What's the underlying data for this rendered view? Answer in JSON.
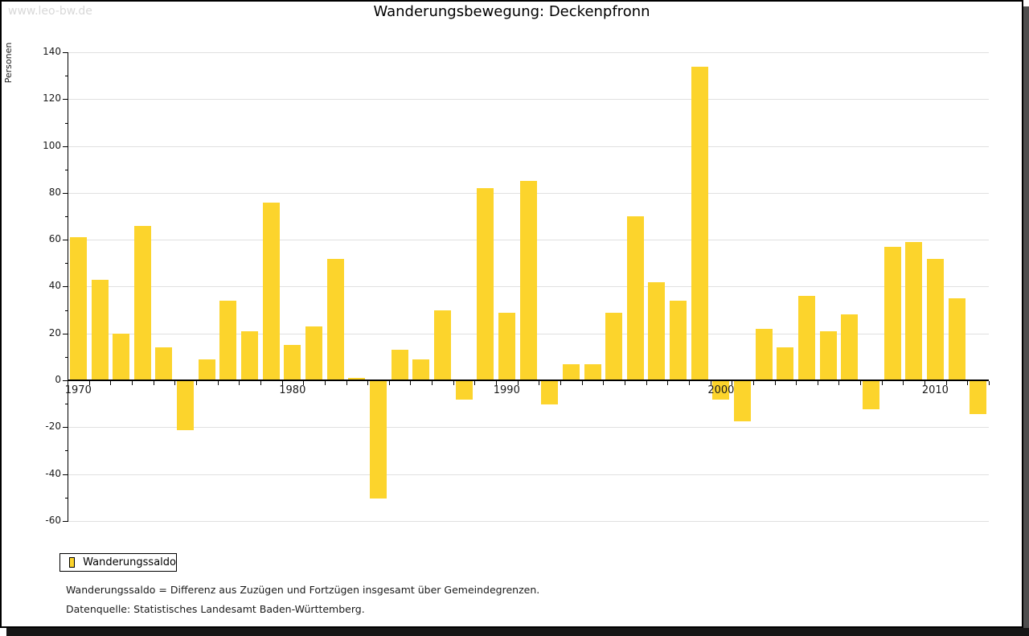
{
  "watermark": "www.leo-bw.de",
  "title": "Wanderungsbewegung: Deckenpfronn",
  "legend": {
    "label": "Wanderungssaldo"
  },
  "footnotes": {
    "definition": "Wanderungssaldo = Differenz aus Zuzügen und Fortzügen insgesamt über Gemeindegrenzen.",
    "source": "Datenquelle: Statistisches Landesamt Baden-Württemberg."
  },
  "colors": {
    "bar": "#fcd42c",
    "grid": "#e0e0e0",
    "axis": "#000000",
    "watermark": "#d8d8d8"
  },
  "chart_data": {
    "type": "bar",
    "title": "Wanderungsbewegung: Deckenpfronn",
    "xlabel": "",
    "ylabel": "Personen",
    "categories": [
      1970,
      1971,
      1972,
      1973,
      1974,
      1975,
      1976,
      1977,
      1978,
      1979,
      1980,
      1981,
      1982,
      1983,
      1984,
      1985,
      1986,
      1987,
      1988,
      1989,
      1990,
      1991,
      1992,
      1993,
      1994,
      1995,
      1996,
      1997,
      1998,
      1999,
      2000,
      2001,
      2002,
      2003,
      2004,
      2005,
      2006,
      2007,
      2008,
      2009,
      2010,
      2011,
      2012
    ],
    "series": [
      {
        "name": "Wanderungssaldo",
        "values": [
          61,
          43,
          20,
          66,
          14,
          -21,
          9,
          34,
          21,
          76,
          15,
          23,
          52,
          1,
          -50,
          13,
          9,
          30,
          -8,
          82,
          29,
          85,
          -10,
          7,
          7,
          29,
          70,
          42,
          34,
          134,
          -8,
          -17,
          22,
          14,
          36,
          21,
          28,
          -12,
          57,
          59,
          52,
          35,
          -14
        ]
      }
    ],
    "ylim": [
      -60,
      140
    ],
    "ytick_major": 20,
    "ytick_minor": 10,
    "xtick_labels": [
      1970,
      1980,
      1990,
      2000,
      2010
    ],
    "grid": "horizontal-major",
    "legend_position": "bottom-left"
  }
}
